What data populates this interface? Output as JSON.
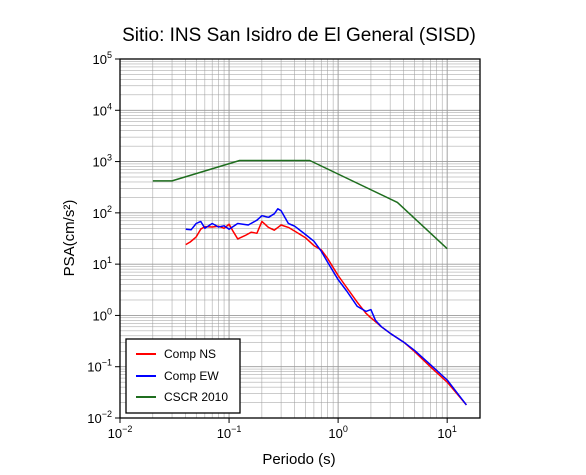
{
  "chart_data": {
    "type": "line",
    "title": "Sitio: INS San Isidro de El General (SISD)",
    "xlabel": "Periodo (s)",
    "ylabel": "PSA(cm/s²)",
    "xscale": "log",
    "yscale": "log",
    "xlim": [
      0.01,
      20
    ],
    "ylim": [
      0.01,
      100000
    ],
    "grid": true,
    "legend_position": "bottom-left",
    "x_ticks": [
      {
        "base": "10",
        "exp": "−2",
        "value": 0.01
      },
      {
        "base": "10",
        "exp": "−1",
        "value": 0.1
      },
      {
        "base": "10",
        "exp": "0",
        "value": 1
      },
      {
        "base": "10",
        "exp": "1",
        "value": 10
      }
    ],
    "y_ticks": [
      {
        "base": "10",
        "exp": "−2",
        "value": 0.01
      },
      {
        "base": "10",
        "exp": "−1",
        "value": 0.1
      },
      {
        "base": "10",
        "exp": "0",
        "value": 1
      },
      {
        "base": "10",
        "exp": "1",
        "value": 10
      },
      {
        "base": "10",
        "exp": "2",
        "value": 100
      },
      {
        "base": "10",
        "exp": "3",
        "value": 1000
      },
      {
        "base": "10",
        "exp": "4",
        "value": 10000
      },
      {
        "base": "10",
        "exp": "5",
        "value": 100000
      }
    ],
    "series": [
      {
        "name": "Comp NS",
        "color": "#ff0000",
        "points": [
          [
            0.04,
            24
          ],
          [
            0.044,
            27
          ],
          [
            0.05,
            34
          ],
          [
            0.055,
            48
          ],
          [
            0.06,
            54
          ],
          [
            0.07,
            53
          ],
          [
            0.08,
            55
          ],
          [
            0.09,
            50
          ],
          [
            0.1,
            60
          ],
          [
            0.11,
            42
          ],
          [
            0.12,
            31
          ],
          [
            0.14,
            36
          ],
          [
            0.16,
            42
          ],
          [
            0.18,
            40
          ],
          [
            0.2,
            68
          ],
          [
            0.23,
            52
          ],
          [
            0.26,
            46
          ],
          [
            0.3,
            58
          ],
          [
            0.35,
            52
          ],
          [
            0.4,
            44
          ],
          [
            0.5,
            33
          ],
          [
            0.6,
            23
          ],
          [
            0.7,
            19
          ],
          [
            0.8,
            13
          ],
          [
            1.0,
            6.0
          ],
          [
            1.2,
            3.5
          ],
          [
            1.5,
            1.8
          ],
          [
            1.8,
            1.1
          ],
          [
            2.0,
            0.9
          ],
          [
            2.5,
            0.6
          ],
          [
            3.0,
            0.45
          ],
          [
            4.0,
            0.3
          ],
          [
            5.0,
            0.2
          ],
          [
            7.0,
            0.1
          ],
          [
            10.0,
            0.05
          ],
          [
            15.0,
            0.018
          ]
        ]
      },
      {
        "name": "Comp EW",
        "color": "#0000ff",
        "points": [
          [
            0.04,
            48
          ],
          [
            0.045,
            47
          ],
          [
            0.05,
            62
          ],
          [
            0.055,
            68
          ],
          [
            0.06,
            50
          ],
          [
            0.07,
            62
          ],
          [
            0.08,
            53
          ],
          [
            0.09,
            56
          ],
          [
            0.1,
            48
          ],
          [
            0.12,
            62
          ],
          [
            0.15,
            58
          ],
          [
            0.18,
            72
          ],
          [
            0.2,
            88
          ],
          [
            0.23,
            82
          ],
          [
            0.26,
            96
          ],
          [
            0.28,
            120
          ],
          [
            0.3,
            110
          ],
          [
            0.35,
            62
          ],
          [
            0.4,
            55
          ],
          [
            0.5,
            38
          ],
          [
            0.6,
            28
          ],
          [
            0.7,
            18
          ],
          [
            0.8,
            11
          ],
          [
            1.0,
            5.0
          ],
          [
            1.2,
            3.0
          ],
          [
            1.5,
            1.5
          ],
          [
            1.8,
            1.2
          ],
          [
            2.0,
            1.3
          ],
          [
            2.2,
            0.8
          ],
          [
            2.5,
            0.6
          ],
          [
            3.0,
            0.45
          ],
          [
            4.0,
            0.3
          ],
          [
            5.0,
            0.21
          ],
          [
            7.0,
            0.11
          ],
          [
            10.0,
            0.055
          ],
          [
            15.0,
            0.018
          ]
        ]
      },
      {
        "name": "CSCR 2010",
        "color": "#1f6e1f",
        "points": [
          [
            0.02,
            420
          ],
          [
            0.03,
            420
          ],
          [
            0.125,
            1050
          ],
          [
            0.55,
            1050
          ],
          [
            3.5,
            160
          ],
          [
            10.0,
            20
          ]
        ]
      }
    ]
  }
}
